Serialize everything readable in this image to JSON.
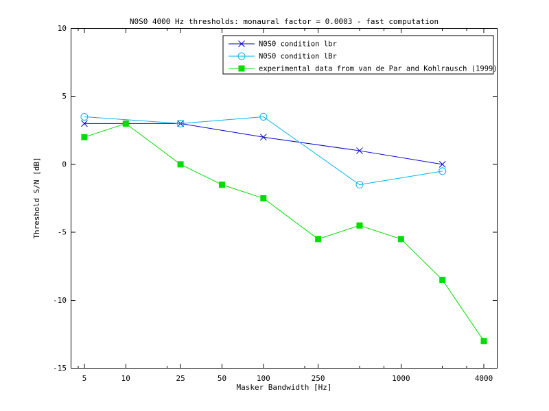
{
  "chart_data": {
    "type": "line",
    "title": "N0S0 4000 Hz thresholds: monaural factor = 0.0003 - fast computation",
    "xlabel": "Masker Bandwidth [Hz]",
    "ylabel": "Threshold S/N [dB]",
    "x_scale": "log",
    "xlim": [
      4,
      5000
    ],
    "ylim": [
      -15,
      10
    ],
    "x_ticks": [
      5,
      10,
      25,
      50,
      100,
      250,
      1000,
      4000
    ],
    "x_tick_labels": [
      "5",
      "10",
      "25",
      "50",
      "100",
      "250",
      "1000",
      "4000"
    ],
    "x_minor_ticks": [
      4.5,
      20,
      200,
      500,
      750,
      2000,
      3000
    ],
    "y_ticks": [
      10,
      5,
      0,
      -5,
      -10,
      -15
    ],
    "y_tick_labels": [
      "10",
      "5",
      "0",
      "-5",
      "-10",
      "-15"
    ],
    "grid": false,
    "axis_color": "#000000",
    "legend": {
      "position": "top-inside",
      "background": "#ffffff",
      "border_color": "#000000"
    },
    "series": [
      {
        "name": "N0S0 condition lbr",
        "color": "#0000CC",
        "marker": "x",
        "line_style": "solid",
        "x": [
          5,
          25,
          100,
          500,
          2000
        ],
        "y": [
          3.0,
          3.0,
          2.0,
          1.0,
          0.0
        ]
      },
      {
        "name": "N0S0 condition lBr",
        "color": "#00B2EE",
        "marker": "circle",
        "line_style": "solid",
        "x": [
          5,
          25,
          100,
          500,
          2000
        ],
        "y": [
          3.5,
          3.0,
          3.5,
          -1.5,
          -0.5
        ]
      },
      {
        "name": "experimental data from van de Par and Kohlrausch (1999)",
        "color": "#00DD00",
        "marker": "square-filled",
        "line_style": "solid",
        "x": [
          5,
          10,
          25,
          50,
          100,
          250,
          500,
          1000,
          2000,
          4000
        ],
        "y": [
          2,
          3,
          0,
          -1.5,
          -2.5,
          -5.5,
          -4.5,
          -5.5,
          -8.5,
          -13
        ]
      }
    ]
  }
}
